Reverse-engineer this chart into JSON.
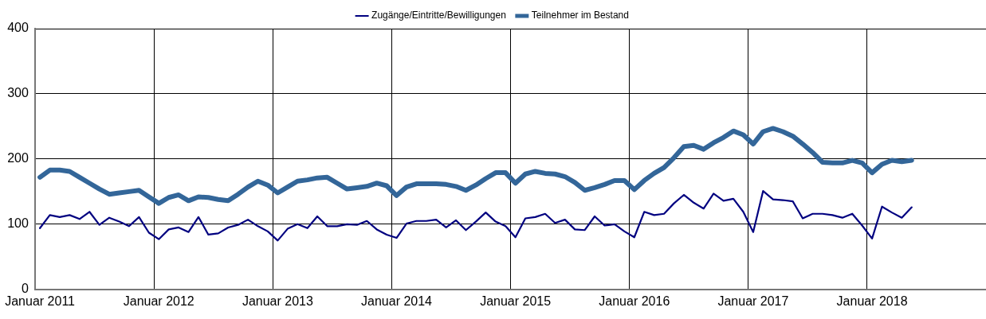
{
  "chart_data": {
    "type": "line",
    "categories": [
      "Januar 2011",
      null,
      null,
      null,
      null,
      null,
      null,
      null,
      null,
      null,
      null,
      null,
      "Januar 2012",
      null,
      null,
      null,
      null,
      null,
      null,
      null,
      null,
      null,
      null,
      null,
      "Januar 2013",
      null,
      null,
      null,
      null,
      null,
      null,
      null,
      null,
      null,
      null,
      null,
      "Januar 2014",
      null,
      null,
      null,
      null,
      null,
      null,
      null,
      null,
      null,
      null,
      null,
      "Januar 2015",
      null,
      null,
      null,
      null,
      null,
      null,
      null,
      null,
      null,
      null,
      null,
      "Januar 2016",
      null,
      null,
      null,
      null,
      null,
      null,
      null,
      null,
      null,
      null,
      null,
      "Januar 2017",
      null,
      null,
      null,
      null,
      null,
      null,
      null,
      null,
      null,
      null,
      null,
      "Januar 2018",
      null,
      null,
      null,
      null,
      null,
      null,
      null,
      null,
      null,
      null,
      null
    ],
    "series": [
      {
        "name": "Zugänge/Eintritte/Bewilligungen",
        "color": "#000080",
        "values": [
          94,
          114,
          111,
          114,
          108,
          119,
          99,
          110,
          104,
          97,
          111,
          87,
          77,
          92,
          95,
          88,
          111,
          84,
          86,
          95,
          99,
          107,
          97,
          89,
          75,
          93,
          100,
          94,
          112,
          97,
          97,
          100,
          99,
          105,
          92,
          84,
          79,
          101,
          105,
          105,
          107,
          95,
          106,
          91,
          104,
          118,
          104,
          97,
          80,
          109,
          111,
          116,
          102,
          107,
          92,
          91,
          112,
          98,
          100,
          89,
          80,
          119,
          114,
          116,
          132,
          145,
          133,
          124,
          147,
          136,
          139,
          119,
          88,
          151,
          138,
          137,
          135,
          109,
          116,
          116,
          114,
          110,
          116,
          98,
          78,
          127,
          118,
          110,
          126,
          null,
          null,
          null,
          null,
          null,
          null,
          null
        ]
      },
      {
        "name": "Teilnehmer im Bestand",
        "color": "#336699",
        "values": [
          172,
          183,
          183,
          181,
          172,
          163,
          154,
          146,
          148,
          150,
          152,
          142,
          132,
          141,
          145,
          136,
          142,
          141,
          138,
          136,
          146,
          157,
          166,
          160,
          148,
          157,
          166,
          168,
          171,
          172,
          163,
          154,
          156,
          158,
          163,
          159,
          144,
          157,
          162,
          162,
          162,
          161,
          158,
          152,
          160,
          170,
          179,
          179,
          163,
          177,
          181,
          178,
          177,
          173,
          164,
          152,
          156,
          161,
          167,
          167,
          153,
          167,
          178,
          187,
          202,
          219,
          221,
          215,
          225,
          233,
          243,
          237,
          223,
          242,
          247,
          242,
          235,
          223,
          210,
          195,
          194,
          194,
          198,
          194,
          179,
          192,
          198,
          196,
          198,
          null,
          null,
          null,
          null,
          null,
          null,
          null
        ]
      }
    ],
    "ylim": [
      0,
      400
    ],
    "yticks": [
      0,
      100,
      200,
      300,
      400
    ],
    "grid": true,
    "legend": "top",
    "marker": "none",
    "line_style": "solid"
  }
}
